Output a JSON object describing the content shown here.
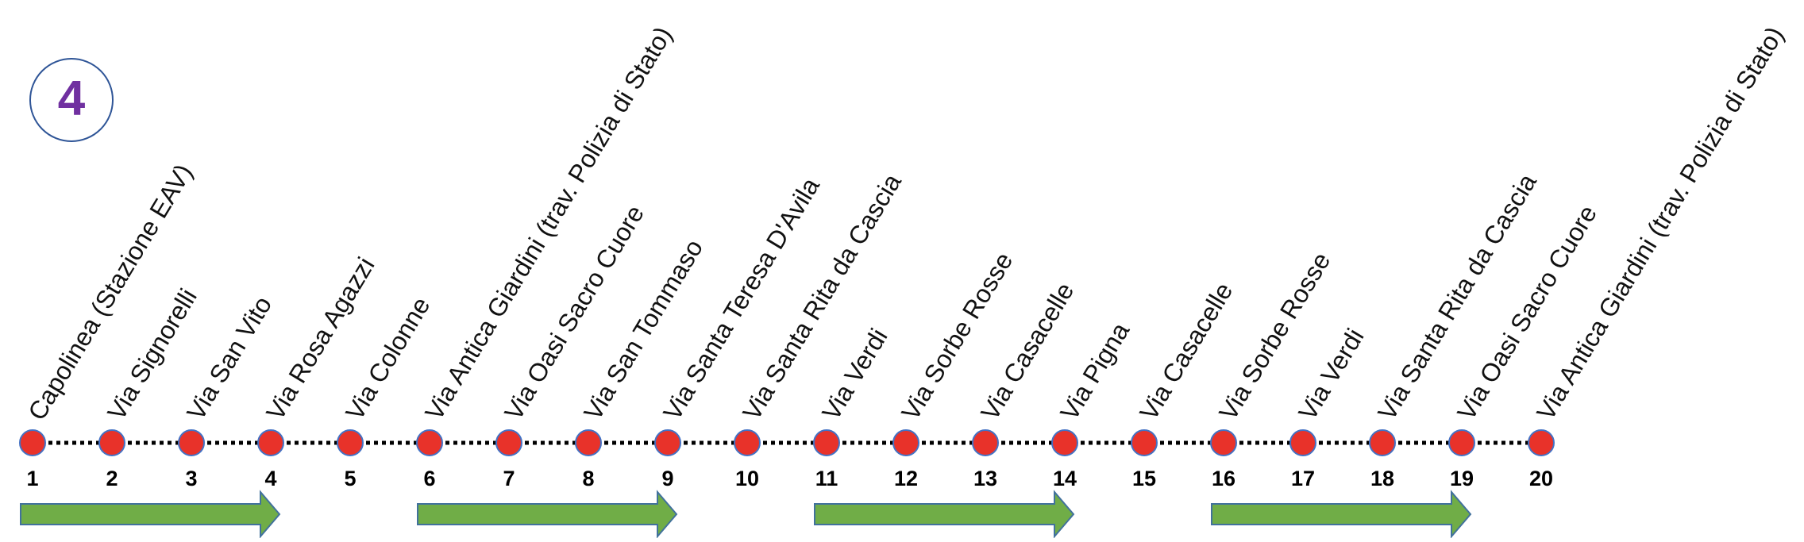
{
  "route": "4",
  "stops": [
    {
      "number": 1,
      "name": "Capolinea (Stazione EAV)"
    },
    {
      "number": 2,
      "name": "Via Signorelli"
    },
    {
      "number": 3,
      "name": "Via San Vito"
    },
    {
      "number": 4,
      "name": "Via Rosa Agazzi"
    },
    {
      "number": 5,
      "name": "Via Colonne"
    },
    {
      "number": 6,
      "name": "Via Antica Giardini (trav. Polizia di Stato)"
    },
    {
      "number": 7,
      "name": "Via Oasi Sacro Cuore"
    },
    {
      "number": 8,
      "name": "Via San Tommaso"
    },
    {
      "number": 9,
      "name": "Via Santa Teresa D'Avila"
    },
    {
      "number": 10,
      "name": "Via Santa Rita da Cascia"
    },
    {
      "number": 11,
      "name": "Via Verdi"
    },
    {
      "number": 12,
      "name": "Via Sorbe Rosse"
    },
    {
      "number": 13,
      "name": "Via Casacelle"
    },
    {
      "number": 14,
      "name": "Via Pigna"
    },
    {
      "number": 15,
      "name": "Via Casacelle"
    },
    {
      "number": 16,
      "name": "Via Sorbe Rosse"
    },
    {
      "number": 17,
      "name": "Via Verdi"
    },
    {
      "number": 18,
      "name": "Via Santa Rita da Cascia"
    },
    {
      "number": 19,
      "name": "Via Oasi Sacro Cuore"
    },
    {
      "number": 20,
      "name": "Via Antica Giardini (trav. Polizia di Stato)"
    }
  ]
}
